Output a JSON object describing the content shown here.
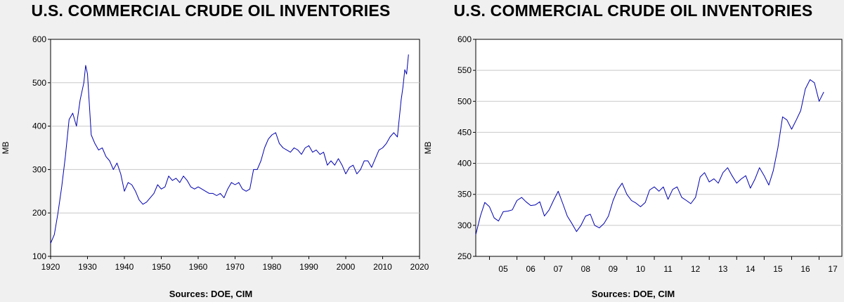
{
  "chart_data": [
    {
      "type": "line",
      "title": "U.S. COMMERCIAL CRUDE OIL INVENTORIES",
      "ylabel": "MB",
      "xlabel": "",
      "source": "Sources:  DOE, CIM",
      "xlim": [
        1920,
        2020
      ],
      "ylim": [
        100,
        600
      ],
      "yticks": [
        "100",
        "200",
        "300",
        "400",
        "500",
        "600"
      ],
      "xticks": [
        "1920",
        "1930",
        "1940",
        "1950",
        "1960",
        "1970",
        "1980",
        "1990",
        "2000",
        "2010",
        "2020"
      ],
      "grid": true,
      "line_color": "#0000b0",
      "series": [
        {
          "x": [
            1920,
            1921,
            1922,
            1923,
            1924,
            1925,
            1926,
            1927,
            1928,
            1929,
            1929.5,
            1930,
            1931,
            1932,
            1933,
            1934,
            1935,
            1936,
            1937,
            1938,
            1939,
            1940,
            1941,
            1942,
            1943,
            1944,
            1945,
            1946,
            1947,
            1948,
            1949,
            1950,
            1951,
            1952,
            1953,
            1954,
            1955,
            1956,
            1957,
            1958,
            1959,
            1960,
            1961,
            1962,
            1963,
            1964,
            1965,
            1966,
            1967,
            1968,
            1969,
            1970,
            1971,
            1972,
            1973,
            1974,
            1975,
            1976,
            1977,
            1978,
            1979,
            1980,
            1981,
            1982,
            1983,
            1984,
            1985,
            1986,
            1987,
            1988,
            1989,
            1990,
            1991,
            1992,
            1993,
            1994,
            1995,
            1996,
            1997,
            1998,
            1999,
            2000,
            2001,
            2002,
            2003,
            2004,
            2005,
            2006,
            2007,
            2008,
            2009,
            2010,
            2011,
            2012,
            2013,
            2014,
            2015,
            2015.5,
            2016,
            2016.5,
            2017
          ],
          "y": [
            130,
            150,
            200,
            260,
            330,
            415,
            430,
            400,
            460,
            500,
            540,
            520,
            380,
            360,
            345,
            350,
            330,
            320,
            300,
            315,
            290,
            250,
            270,
            265,
            250,
            230,
            220,
            225,
            235,
            245,
            265,
            255,
            260,
            285,
            275,
            280,
            270,
            285,
            275,
            260,
            255,
            260,
            255,
            250,
            245,
            245,
            240,
            245,
            235,
            255,
            270,
            265,
            270,
            255,
            250,
            255,
            300,
            300,
            320,
            350,
            370,
            380,
            385,
            360,
            350,
            345,
            340,
            350,
            345,
            335,
            350,
            355,
            340,
            345,
            335,
            340,
            310,
            320,
            310,
            325,
            310,
            290,
            305,
            310,
            290,
            300,
            320,
            320,
            305,
            325,
            345,
            350,
            360,
            375,
            385,
            375,
            460,
            490,
            530,
            520,
            565
          ]
        }
      ]
    },
    {
      "type": "line",
      "title": "U.S. COMMERCIAL CRUDE OIL INVENTORIES",
      "ylabel": "MB",
      "xlabel": "",
      "source": "Sources:  DOE, CIM",
      "xlim": [
        2004.5,
        2017.83
      ],
      "ylim": [
        250,
        600
      ],
      "yticks": [
        "250",
        "300",
        "350",
        "400",
        "450",
        "500",
        "550",
        "600"
      ],
      "xticks": [
        "05",
        "06",
        "07",
        "08",
        "09",
        "10",
        "11",
        "12",
        "13",
        "14",
        "15",
        "16",
        "17"
      ],
      "grid": true,
      "line_color": "#0000b0",
      "series": [
        {
          "x": [
            2004.5,
            2004.67,
            2004.83,
            2005.0,
            2005.17,
            2005.33,
            2005.5,
            2005.67,
            2005.83,
            2006.0,
            2006.17,
            2006.33,
            2006.5,
            2006.67,
            2006.83,
            2007.0,
            2007.17,
            2007.33,
            2007.5,
            2007.67,
            2007.83,
            2008.0,
            2008.17,
            2008.33,
            2008.5,
            2008.67,
            2008.83,
            2009.0,
            2009.17,
            2009.33,
            2009.5,
            2009.67,
            2009.83,
            2010.0,
            2010.17,
            2010.33,
            2010.5,
            2010.67,
            2010.83,
            2011.0,
            2011.17,
            2011.33,
            2011.5,
            2011.67,
            2011.83,
            2012.0,
            2012.17,
            2012.33,
            2012.5,
            2012.67,
            2012.83,
            2013.0,
            2013.17,
            2013.33,
            2013.5,
            2013.67,
            2013.83,
            2014.0,
            2014.17,
            2014.33,
            2014.5,
            2014.67,
            2014.83,
            2015.0,
            2015.17,
            2015.33,
            2015.5,
            2015.67,
            2015.83,
            2016.0,
            2016.17,
            2016.33,
            2016.5,
            2016.67,
            2016.83,
            2017.0,
            2017.17
          ],
          "y": [
            285,
            315,
            337,
            330,
            312,
            307,
            322,
            323,
            325,
            340,
            345,
            338,
            332,
            333,
            338,
            315,
            325,
            340,
            355,
            335,
            315,
            303,
            290,
            300,
            315,
            318,
            300,
            296,
            303,
            315,
            340,
            358,
            368,
            350,
            340,
            336,
            330,
            337,
            357,
            362,
            355,
            362,
            342,
            358,
            362,
            345,
            340,
            335,
            345,
            378,
            385,
            370,
            375,
            368,
            385,
            393,
            380,
            368,
            375,
            380,
            360,
            375,
            393,
            380,
            365,
            388,
            425,
            475,
            470,
            455,
            470,
            485,
            520,
            535,
            530,
            500,
            515
          ]
        }
      ]
    }
  ]
}
